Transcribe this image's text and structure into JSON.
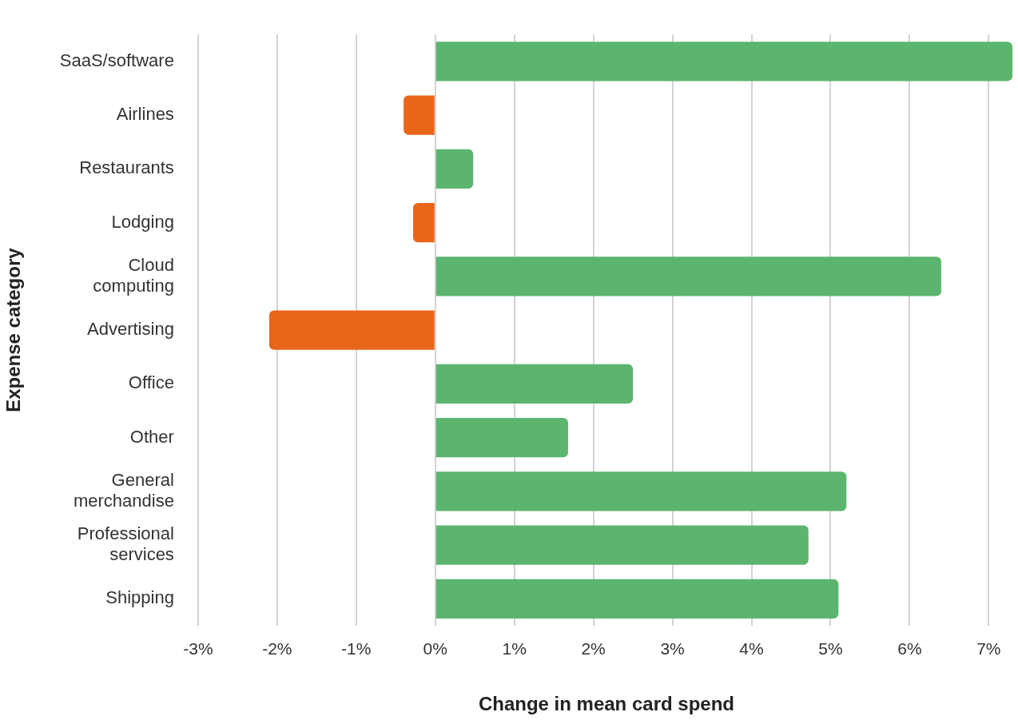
{
  "chart_data": {
    "type": "bar",
    "orientation": "horizontal",
    "xlabel": "Change in mean card spend",
    "ylabel": "Expense category",
    "categories": [
      "SaaS/software",
      "Airlines",
      "Restaurants",
      "Lodging",
      "Cloud computing",
      "Advertising",
      "Office",
      "Other",
      "General merchandise",
      "Professional services",
      "Shipping"
    ],
    "values": [
      7.3,
      -0.4,
      0.48,
      -0.28,
      6.4,
      -2.1,
      2.5,
      1.68,
      5.2,
      4.72,
      5.1
    ],
    "colors": [
      "#5bb56f",
      "#e86519",
      "#5bb56f",
      "#e86519",
      "#5bb56f",
      "#e86519",
      "#5bb56f",
      "#5bb56f",
      "#5bb56f",
      "#5bb56f",
      "#5bb56f"
    ],
    "xlim": [
      -3,
      7.33
    ],
    "xticks": [
      {
        "value": -3,
        "label": "-3%"
      },
      {
        "value": -2,
        "label": "-2%"
      },
      {
        "value": -1,
        "label": "-1%"
      },
      {
        "value": 0,
        "label": "0%"
      },
      {
        "value": 1,
        "label": "1%"
      },
      {
        "value": 2,
        "label": "2%"
      },
      {
        "value": 3,
        "label": "3%"
      },
      {
        "value": 4,
        "label": "4%"
      },
      {
        "value": 5,
        "label": "5%"
      },
      {
        "value": 6,
        "label": "6%"
      },
      {
        "value": 7,
        "label": "7%"
      }
    ],
    "grid": "x",
    "legend": false
  }
}
